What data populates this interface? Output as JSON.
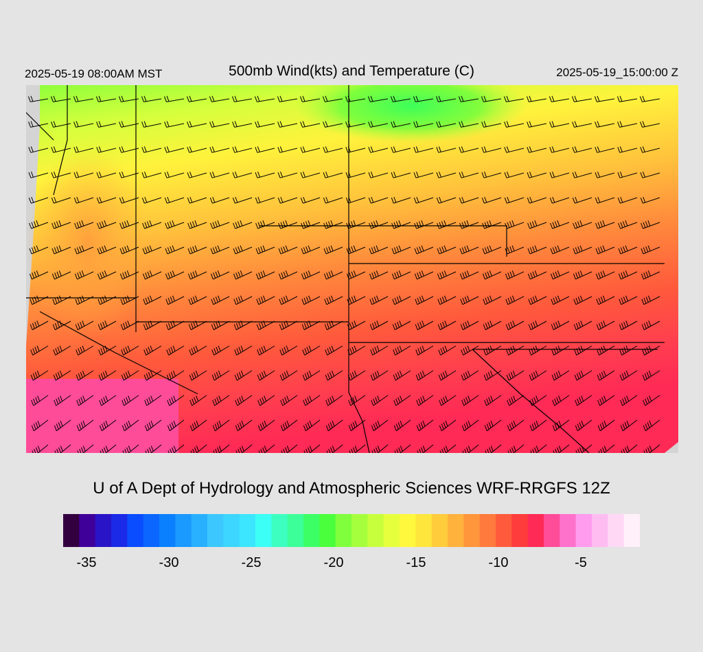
{
  "header": {
    "local_time": "2025-05-19 08:00AM MST",
    "title": "500mb Wind(kts) and Temperature (C)",
    "utc_time": "2025-05-19_15:00:00 Z"
  },
  "footer": {
    "credit": "U of A Dept of Hydrology and Atmospheric Sciences WRF-RRGFS 12Z"
  },
  "colorbar": {
    "colors": [
      "#33003f",
      "#3f0099",
      "#2a14c8",
      "#1a2ae6",
      "#0a4cff",
      "#0a66ff",
      "#0a80ff",
      "#1a99ff",
      "#28b0ff",
      "#3cc8ff",
      "#3cd6ff",
      "#3ce6ff",
      "#3cfff6",
      "#3cffc0",
      "#3cff9a",
      "#3cff66",
      "#4aff3c",
      "#80ff3c",
      "#a6ff3c",
      "#c8ff3c",
      "#e6ff3c",
      "#fff83c",
      "#ffe63c",
      "#ffcc3c",
      "#ffb23c",
      "#ff963c",
      "#ff7a3c",
      "#ff5a3c",
      "#ff3c3c",
      "#ff2a55",
      "#ff4c99",
      "#ff72cc",
      "#ff9cee",
      "#ffbcf0",
      "#ffd8f6",
      "#fff0fa"
    ],
    "tick_labels": [
      {
        "label": "-35",
        "value": -35
      },
      {
        "label": "-30",
        "value": -30
      },
      {
        "label": "-25",
        "value": -25
      },
      {
        "label": "-20",
        "value": -20
      },
      {
        "label": "-15",
        "value": -15
      },
      {
        "label": "-10",
        "value": -10
      },
      {
        "label": "-5",
        "value": -5
      }
    ],
    "range": [
      -36,
      -1
    ]
  },
  "map": {
    "units": "C",
    "field": "500mb temperature and wind barbs"
  }
}
